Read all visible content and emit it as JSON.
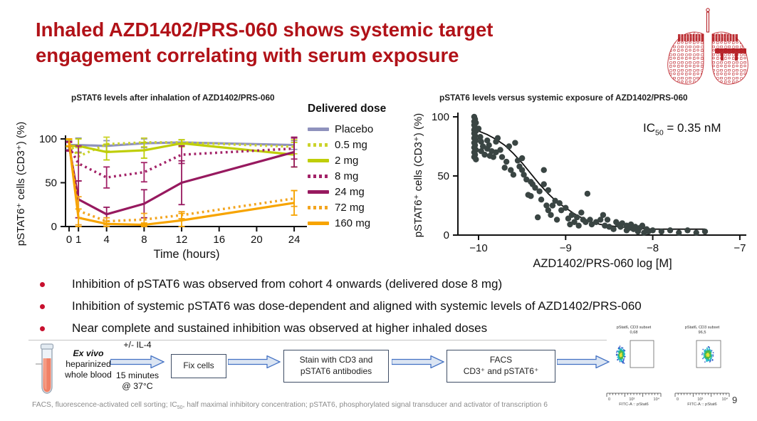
{
  "slide": {
    "title_line1": "Inhaled AZD1402/PRS-060 shows systemic target",
    "title_line2": "engagement correlating with serum exposure",
    "title_color": "#B11218",
    "page_number": "9",
    "footer": {
      "part1": "FACS, fluorescence-activated cell sorting; IC",
      "sub": "50",
      "part2": ", half maximal inhibitory concentration; pSTAT6, phosphorylated signal transducer and activator of transcription 6"
    }
  },
  "bullets": [
    "Inhibition of pSTAT6 was observed from cohort 4 onwards (delivered dose 8 mg)",
    "Inhibition of systemic pSTAT6 was dose-dependent and aligned with systemic levels of AZD1402/PRS-060",
    "Near complete and sustained inhibition was observed at higher inhaled doses"
  ],
  "bullet_color": "#C8102E",
  "chart_data": [
    {
      "type": "line",
      "title": "pSTAT6 levels after inhalation of AZD1402/PRS-060",
      "xlabel": "Time (hours)",
      "ylabel": "pSTAT6⁺ cells (CD3⁺) (%)",
      "xticks": [
        0,
        1,
        4,
        8,
        12,
        16,
        20,
        24
      ],
      "yticks": [
        0,
        50,
        100
      ],
      "ylim": [
        0,
        100
      ],
      "legend_title": "Delivered dose",
      "x": [
        0,
        1,
        4,
        8,
        12,
        24
      ],
      "series": [
        {
          "name": "Placebo",
          "color": "#8F92BD",
          "style": "solid",
          "y": [
            93,
            93,
            92,
            95,
            96,
            93
          ],
          "err": [
            5,
            8,
            6,
            5,
            3,
            5
          ]
        },
        {
          "name": "0.5 mg",
          "color": "#CBD32B",
          "style": "dotted",
          "y": [
            95,
            80,
            94,
            96,
            96,
            91
          ],
          "err": [
            4,
            10,
            8,
            5,
            3,
            8
          ]
        },
        {
          "name": "2 mg",
          "color": "#BFCE08",
          "style": "solid",
          "y": [
            92,
            92,
            85,
            87,
            95,
            82
          ],
          "err": [
            5,
            8,
            9,
            9,
            4,
            14
          ]
        },
        {
          "name": "8 mg",
          "color": "#A32368",
          "style": "dotted",
          "y": [
            91,
            72,
            56,
            62,
            82,
            89
          ],
          "err": [
            5,
            20,
            12,
            11,
            10,
            12
          ]
        },
        {
          "name": "24 mg",
          "color": "#97195F",
          "style": "solid",
          "y": [
            92,
            31,
            14,
            26,
            50,
            85
          ],
          "err": [
            5,
            21,
            8,
            16,
            25,
            17
          ]
        },
        {
          "name": "72 mg",
          "color": "#F3A51F",
          "style": "dotted",
          "y": [
            96,
            18,
            6,
            8,
            13,
            32
          ],
          "err": [
            4,
            16,
            4,
            7,
            4,
            9
          ]
        },
        {
          "name": "160 mg",
          "color": "#F7A400",
          "style": "solid",
          "y": [
            96,
            10,
            3,
            2,
            7,
            27
          ],
          "err": [
            4,
            10,
            3,
            2,
            8,
            14
          ]
        }
      ]
    },
    {
      "type": "scatter",
      "title": "pSTAT6 levels versus systemic exposure of AZD1402/PRS-060",
      "xlabel": "AZD1402/PRS-060 log [M]",
      "ylabel": "pSTAT6⁺ cells (CD3⁺) (%)",
      "xticks": [
        -10,
        -9,
        -8,
        -7
      ],
      "xtick_labels": [
        "−10",
        "−9",
        "−8",
        "−7"
      ],
      "yticks": [
        0,
        50,
        100
      ],
      "xlim": [
        -10.25,
        -7
      ],
      "ylim": [
        0,
        100
      ],
      "annotation": {
        "pre": "IC",
        "sub": "50",
        "post": " = 0.35 nM"
      },
      "point_color": "#3A4543",
      "points": [
        [
          -10.05,
          100
        ],
        [
          -10.04,
          98
        ],
        [
          -10.05,
          96
        ],
        [
          -10.03,
          95
        ],
        [
          -10.05,
          93
        ],
        [
          -10.04,
          91
        ],
        [
          -10.05,
          89
        ],
        [
          -10.03,
          88
        ],
        [
          -10.05,
          86
        ],
        [
          -10.04,
          84
        ],
        [
          -10.05,
          82
        ],
        [
          -10.03,
          80
        ],
        [
          -10.05,
          78
        ],
        [
          -10.04,
          76
        ],
        [
          -10.05,
          74
        ],
        [
          -10.03,
          72
        ],
        [
          -10.05,
          70
        ],
        [
          -10.04,
          68
        ],
        [
          -10.05,
          66
        ],
        [
          -10.03,
          64
        ],
        [
          -10.0,
          90
        ],
        [
          -9.98,
          83
        ],
        [
          -9.97,
          79
        ],
        [
          -9.95,
          75
        ],
        [
          -9.97,
          71
        ],
        [
          -9.93,
          68
        ],
        [
          -9.9,
          80
        ],
        [
          -9.9,
          73
        ],
        [
          -9.88,
          76
        ],
        [
          -9.87,
          67
        ],
        [
          -9.85,
          71
        ],
        [
          -9.83,
          66
        ],
        [
          -9.8,
          79
        ],
        [
          -9.8,
          70
        ],
        [
          -9.78,
          82
        ],
        [
          -9.75,
          72
        ],
        [
          -9.73,
          66
        ],
        [
          -9.7,
          57
        ],
        [
          -9.68,
          62
        ],
        [
          -9.65,
          75
        ],
        [
          -9.63,
          55
        ],
        [
          -9.6,
          51
        ],
        [
          -9.58,
          78
        ],
        [
          -9.55,
          63
        ],
        [
          -9.53,
          58
        ],
        [
          -9.5,
          65
        ],
        [
          -9.5,
          55
        ],
        [
          -9.48,
          51
        ],
        [
          -9.45,
          47
        ],
        [
          -9.43,
          34
        ],
        [
          -9.4,
          45
        ],
        [
          -9.4,
          33
        ],
        [
          -9.38,
          43
        ],
        [
          -9.35,
          40
        ],
        [
          -9.32,
          15
        ],
        [
          -9.3,
          37
        ],
        [
          -9.28,
          30
        ],
        [
          -9.25,
          55
        ],
        [
          -9.25,
          43
        ],
        [
          -9.22,
          25
        ],
        [
          -9.2,
          38
        ],
        [
          -9.2,
          21
        ],
        [
          -9.17,
          17
        ],
        [
          -9.15,
          25
        ],
        [
          -9.12,
          29
        ],
        [
          -9.1,
          13
        ],
        [
          -9.07,
          27
        ],
        [
          -9.05,
          21
        ],
        [
          -9.0,
          23
        ],
        [
          -8.97,
          14
        ],
        [
          -8.95,
          9
        ],
        [
          -8.93,
          17
        ],
        [
          -8.9,
          11
        ],
        [
          -8.87,
          15
        ],
        [
          -8.85,
          8
        ],
        [
          -8.82,
          19
        ],
        [
          -8.8,
          13
        ],
        [
          -8.77,
          11
        ],
        [
          -8.75,
          35
        ],
        [
          -8.72,
          13
        ],
        [
          -8.7,
          9
        ],
        [
          -8.65,
          11
        ],
        [
          -8.6,
          13
        ],
        [
          -8.57,
          17
        ],
        [
          -8.55,
          8
        ],
        [
          -8.52,
          13
        ],
        [
          -8.5,
          7
        ],
        [
          -8.45,
          5
        ],
        [
          -8.42,
          11
        ],
        [
          -8.4,
          9
        ],
        [
          -8.37,
          7
        ],
        [
          -8.35,
          10
        ],
        [
          -8.3,
          8
        ],
        [
          -8.3,
          4
        ],
        [
          -8.27,
          6
        ],
        [
          -8.25,
          9
        ],
        [
          -8.22,
          5
        ],
        [
          -8.2,
          7
        ],
        [
          -8.17,
          3
        ],
        [
          -8.15,
          6
        ],
        [
          -8.12,
          8
        ],
        [
          -8.1,
          2
        ],
        [
          -8.07,
          5
        ],
        [
          -8.05,
          3
        ],
        [
          -8.0,
          4
        ],
        [
          -7.9,
          3
        ],
        [
          -7.8,
          4
        ],
        [
          -7.7,
          2
        ],
        [
          -7.6,
          4
        ],
        [
          -7.5,
          2
        ],
        [
          -7.4,
          3
        ]
      ],
      "fit_curve": [
        [
          -10.0,
          88
        ],
        [
          -9.9,
          85
        ],
        [
          -9.8,
          81
        ],
        [
          -9.7,
          76
        ],
        [
          -9.6,
          69
        ],
        [
          -9.5,
          61
        ],
        [
          -9.4,
          52
        ],
        [
          -9.3,
          43
        ],
        [
          -9.2,
          35
        ],
        [
          -9.1,
          28
        ],
        [
          -9.0,
          23
        ],
        [
          -8.9,
          18
        ],
        [
          -8.8,
          14
        ],
        [
          -8.7,
          11
        ],
        [
          -8.6,
          9
        ],
        [
          -8.5,
          8
        ],
        [
          -8.4,
          7
        ],
        [
          -8.2,
          6
        ],
        [
          -8.0,
          5
        ],
        [
          -7.4,
          5
        ]
      ]
    }
  ],
  "workflow": {
    "sample": {
      "italic": "Ex vivo",
      "line2": "heparinized",
      "line3": "whole blood"
    },
    "arrow1_top": "+/- IL-4",
    "arrow1_bottom1": "15 minutes",
    "arrow1_bottom2": "@ 37°C",
    "steps": [
      {
        "line1": "Fix cells",
        "line2": ""
      },
      {
        "line1": "Stain with CD3 and",
        "line2": "pSTAT6 antibodies"
      },
      {
        "line1": "FACS",
        "line2": "CD3⁺ and pSTAT6⁺"
      }
    ]
  },
  "facs": {
    "panels": [
      {
        "title": "pStat6, CD3 subset",
        "value": "0,68"
      },
      {
        "title": "pStat6, CD3 subset",
        "value": "96,5"
      }
    ],
    "axis_ticks": [
      "0",
      "10³",
      "10⁴"
    ],
    "axis_label": "FITC-A :: pStat6"
  }
}
